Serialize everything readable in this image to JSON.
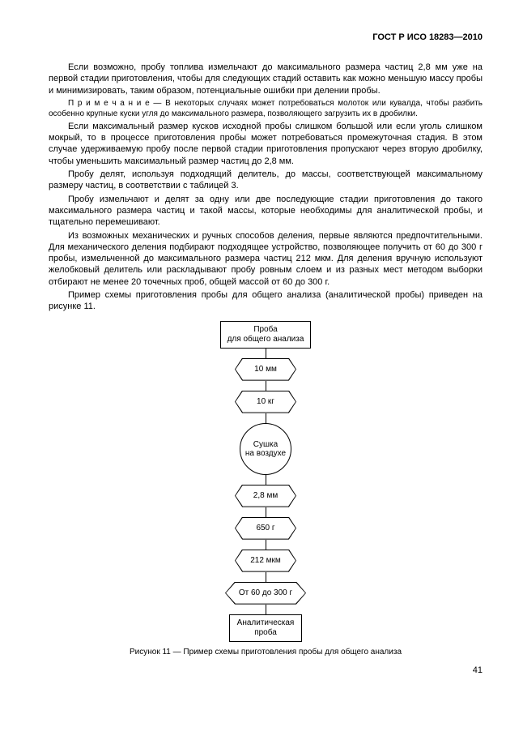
{
  "header": {
    "standard": "ГОСТ Р ИСО 18283—2010"
  },
  "paragraphs": {
    "p1": "Если возможно, пробу топлива измельчают до максимального размера частиц 2,8 мм уже на первой стадии приготовления, чтобы для следующих стадий оставить как можно меньшую массу пробы и минимизировать, таким образом, потенциальные ошибки при делении пробы.",
    "note_label": "П р и м е ч а н и е",
    "note_text": " — В некоторых случаях может потребоваться молоток или кувалда, чтобы разбить особенно крупные куски угля до максимального размера, позволяющего загрузить их в дробилки.",
    "p2": "Если максимальный размер кусков исходной пробы слишком  большой или если уголь слишком мокрый, то в процессе приготовления пробы может потребоваться промежуточная стадия. В этом случае удерживаемую пробу после первой стадии приготовления пропускают через вторую дробилку, чтобы уменьшить максимальный размер частиц до 2,8 мм.",
    "p3": "Пробу делят, используя подходящий делитель, до массы, соответствующей максимальному размеру частиц, в соответствии с таблицей 3.",
    "p4": "Пробу измельчают и делят за одну или две последующие стадии приготовления до такого максимального размера частиц и такой массы, которые необходимы для аналитической пробы, и тщательно перемешивают.",
    "p5": "Из возможных механических и ручных способов деления, первые являются предпочтительными. Для механического деления подбирают подходящее устройство, позволяющее получить от 60 до 300 г пробы, измельченной до максимального размера частиц 212 мкм. Для деления вручную используют  желобковый делитель или раскладывают пробу ровным слоем и из разных мест методом выборки  отбирают  не менее 20 точечных проб, общей массой от 60 до 300 г.",
    "p6": "Пример схемы приготовления  пробы  для общего анализа  (аналитической пробы) приведен на рисунке 11."
  },
  "flowchart": {
    "start": "Проба\nдля общего анализа",
    "n1": "10 мм",
    "n2": "10 кг",
    "circle": "Сушка\nна воздухе",
    "n3": "2,8 мм",
    "n4": "650 г",
    "n5": "212 мкм",
    "n6": "От 60 до 300 г",
    "end": "Аналитическая\nпроба"
  },
  "caption": "Рисунок 11 — Пример схемы  приготовления пробы для общего анализа",
  "page_number": "41",
  "style": {
    "body_fontsize": 11,
    "note_fontsize": 10,
    "flow_fontsize": 10,
    "text_color": "#000000",
    "bg_color": "#ffffff",
    "line_color": "#000000"
  }
}
